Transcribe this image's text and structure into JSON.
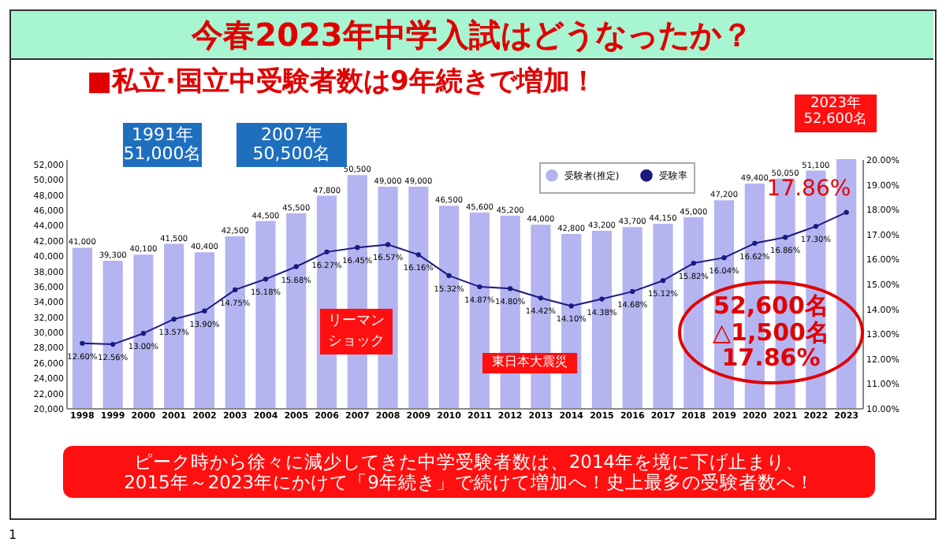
{
  "chart_data": {
    "type": "bar",
    "title": "今春2023年中学入試はどうなったか？",
    "subtitle": "■私立·国立中受験者数は9年続きで増加！",
    "categories": [
      "1998",
      "1999",
      "2000",
      "2001",
      "2002",
      "2003",
      "2004",
      "2005",
      "2006",
      "2007",
      "2008",
      "2009",
      "2010",
      "2011",
      "2012",
      "2013",
      "2014",
      "2015",
      "2016",
      "2017",
      "2018",
      "2019",
      "2020",
      "2021",
      "2022",
      "2023"
    ],
    "series": [
      {
        "name": "受験者(推定)",
        "color": "#b4b4f0",
        "values": [
          41000,
          39300,
          40100,
          41500,
          40400,
          42500,
          44500,
          45500,
          47800,
          50500,
          49000,
          49000,
          46500,
          45600,
          45200,
          44000,
          42800,
          43200,
          43700,
          44150,
          45000,
          47200,
          49400,
          50050,
          51100,
          52600
        ],
        "value_labels": [
          "41,000",
          "39,300",
          "40,100",
          "41,500",
          "40,400",
          "42,500",
          "44,500",
          "45,500",
          "47,800",
          "50,500",
          "49,000",
          "49,000",
          "46,500",
          "45,600",
          "45,200",
          "44,000",
          "42,800",
          "43,200",
          "43,700",
          "44,150",
          "45,000",
          "47,200",
          "49,400",
          "50,050",
          "51,100",
          null
        ]
      },
      {
        "name": "受験率",
        "type": "line",
        "axis": "y2",
        "color": "#1a1a80",
        "values": [
          12.6,
          12.56,
          13.0,
          13.57,
          13.9,
          14.75,
          15.18,
          15.68,
          16.27,
          16.45,
          16.57,
          16.16,
          15.32,
          14.87,
          14.8,
          14.42,
          14.1,
          14.38,
          14.68,
          15.12,
          15.82,
          16.04,
          16.62,
          16.86,
          17.3,
          17.86
        ],
        "value_labels": [
          "12.60%",
          "12.56%",
          "13.00%",
          "13.57%",
          "13.90%",
          "14.75%",
          "15.18%",
          "15.68%",
          "16.27%",
          "16.45%",
          "16.57%",
          "16.16%",
          "15.32%",
          "14.87%",
          "14.80%",
          "14.42%",
          "14.10%",
          "14.38%",
          "14.68%",
          "15.12%",
          "15.82%",
          "16.04%",
          "16.62%",
          "16.86%",
          "17.30%",
          null
        ]
      }
    ],
    "ylim": [
      20000,
      52600
    ],
    "yticks": [
      {
        "value": 20000,
        "label": "20,000"
      },
      {
        "value": 22000,
        "label": "22,000"
      },
      {
        "value": 24000,
        "label": "24,000"
      },
      {
        "value": 26000,
        "label": "26,000"
      },
      {
        "value": 28000,
        "label": "28,000"
      },
      {
        "value": 30000,
        "label": "30,000"
      },
      {
        "value": 32000,
        "label": "32,000"
      },
      {
        "value": 34000,
        "label": "34,000"
      },
      {
        "value": 36000,
        "label": "36,000"
      },
      {
        "value": 38000,
        "label": "38,000"
      },
      {
        "value": 40000,
        "label": "40,000"
      },
      {
        "value": 42000,
        "label": "42,000"
      },
      {
        "value": 44000,
        "label": "44,000"
      },
      {
        "value": 46000,
        "label": "46,000"
      },
      {
        "value": 48000,
        "label": "48,000"
      },
      {
        "value": 50000,
        "label": "50,000"
      },
      {
        "value": 52000,
        "label": "52,000"
      }
    ],
    "y2lim": [
      10,
      20
    ],
    "y2ticks": [
      {
        "value": 10,
        "label": "10.00%"
      },
      {
        "value": 11,
        "label": "11.00%"
      },
      {
        "value": 12,
        "label": "12.00%"
      },
      {
        "value": 13,
        "label": "13.00%"
      },
      {
        "value": 14,
        "label": "14.00%"
      },
      {
        "value": 15,
        "label": "15.00%"
      },
      {
        "value": 16,
        "label": "16.00%"
      },
      {
        "value": 17,
        "label": "17.00%"
      },
      {
        "value": 18,
        "label": "18.00%"
      },
      {
        "value": 19,
        "label": "19.00%"
      },
      {
        "value": 20,
        "label": "20.00%"
      }
    ],
    "legend": "top",
    "marker": "circle",
    "line_style": "solid",
    "grid": false,
    "annotations": [
      "1991年\n51,000名",
      "2007年\n50,500名",
      "2023年\n52,600名",
      "17.86%",
      "リーマンショック",
      "東日本大震災",
      "52,600名\n△1,500名\n17.86%",
      "ピーク時から徐々に減少してきた中学受験者数は、2014年を境に下げ止まり、\n2015年～2023年にかけて「9年続き」で続けて増加へ！史上最多の受験者数へ！",
      "1"
    ]
  }
}
